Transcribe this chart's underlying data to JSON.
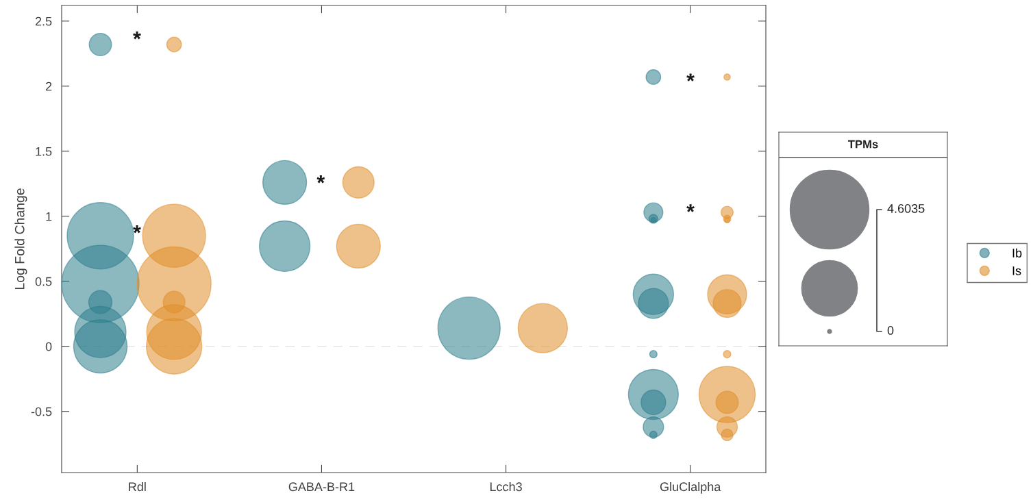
{
  "chart_data": {
    "type": "bubble",
    "ylabel": "Log Fold Change",
    "categories": [
      "Rdl",
      "GABA-B-R1",
      "Lcch3",
      "GluClalpha"
    ],
    "series": [
      {
        "name": "Ib",
        "color": "#2e7d8c",
        "x": [
          "Rdl",
          "Rdl",
          "Rdl",
          "Rdl",
          "Rdl",
          "Rdl",
          "GABA-B-R1",
          "GABA-B-R1",
          "Lcch3",
          "GluClalpha",
          "GluClalpha",
          "GluClalpha",
          "GluClalpha",
          "GluClalpha",
          "GluClalpha",
          "GluClalpha",
          "GluClalpha",
          "GluClalpha",
          "GluClalpha",
          "GluClalpha"
        ],
        "values": [
          2.32,
          0.85,
          0.48,
          0.34,
          0.11,
          0.0,
          1.26,
          0.77,
          0.14,
          2.07,
          1.03,
          0.98,
          0.97,
          0.4,
          0.33,
          -0.06,
          -0.37,
          -0.43,
          -0.62,
          -0.68
        ],
        "sizes": [
          0.37,
          3.27,
          4.44,
          0.4,
          1.96,
          2.12,
          1.42,
          1.9,
          2.88,
          0.16,
          0.27,
          0.06,
          0.02,
          1.21,
          0.67,
          0.04,
          1.85,
          0.45,
          0.31,
          0.04
        ]
      },
      {
        "name": "Is",
        "color": "#e08e2a",
        "x": [
          "Rdl",
          "Rdl",
          "Rdl",
          "Rdl",
          "Rdl",
          "Rdl",
          "GABA-B-R1",
          "GABA-B-R1",
          "Lcch3",
          "GluClalpha",
          "GluClalpha",
          "GluClalpha",
          "GluClalpha",
          "GluClalpha",
          "GluClalpha",
          "GluClalpha",
          "GluClalpha",
          "GluClalpha",
          "GluClalpha",
          "GluClalpha"
        ],
        "values": [
          2.32,
          0.85,
          0.48,
          0.34,
          0.11,
          0.0,
          1.26,
          0.77,
          0.14,
          2.07,
          1.03,
          0.98,
          0.97,
          0.4,
          0.33,
          -0.06,
          -0.37,
          -0.43,
          -0.62,
          -0.68
        ],
        "sizes": [
          0.16,
          2.94,
          4.06,
          0.35,
          2.23,
          2.28,
          0.73,
          1.42,
          1.8,
          0.03,
          0.11,
          0.04,
          0.02,
          1.13,
          0.58,
          0.04,
          2.34,
          0.37,
          0.31,
          0.1
        ]
      }
    ],
    "ylim": [
      -0.97,
      2.62
    ],
    "yticks": [
      -0.5,
      0,
      0.5,
      1,
      1.5,
      2,
      2.5
    ],
    "size_legend": [
      4.6035
    ],
    "legend_title": "TPMs",
    "legend": "right",
    "grid": false,
    "ref_lines": [
      {
        "axis": "y",
        "value": 0,
        "color": "#e6e6e6",
        "line_style": "dashed"
      }
    ],
    "annotations": [
      "*",
      "*",
      "*",
      "*",
      "*",
      "0"
    ]
  }
}
